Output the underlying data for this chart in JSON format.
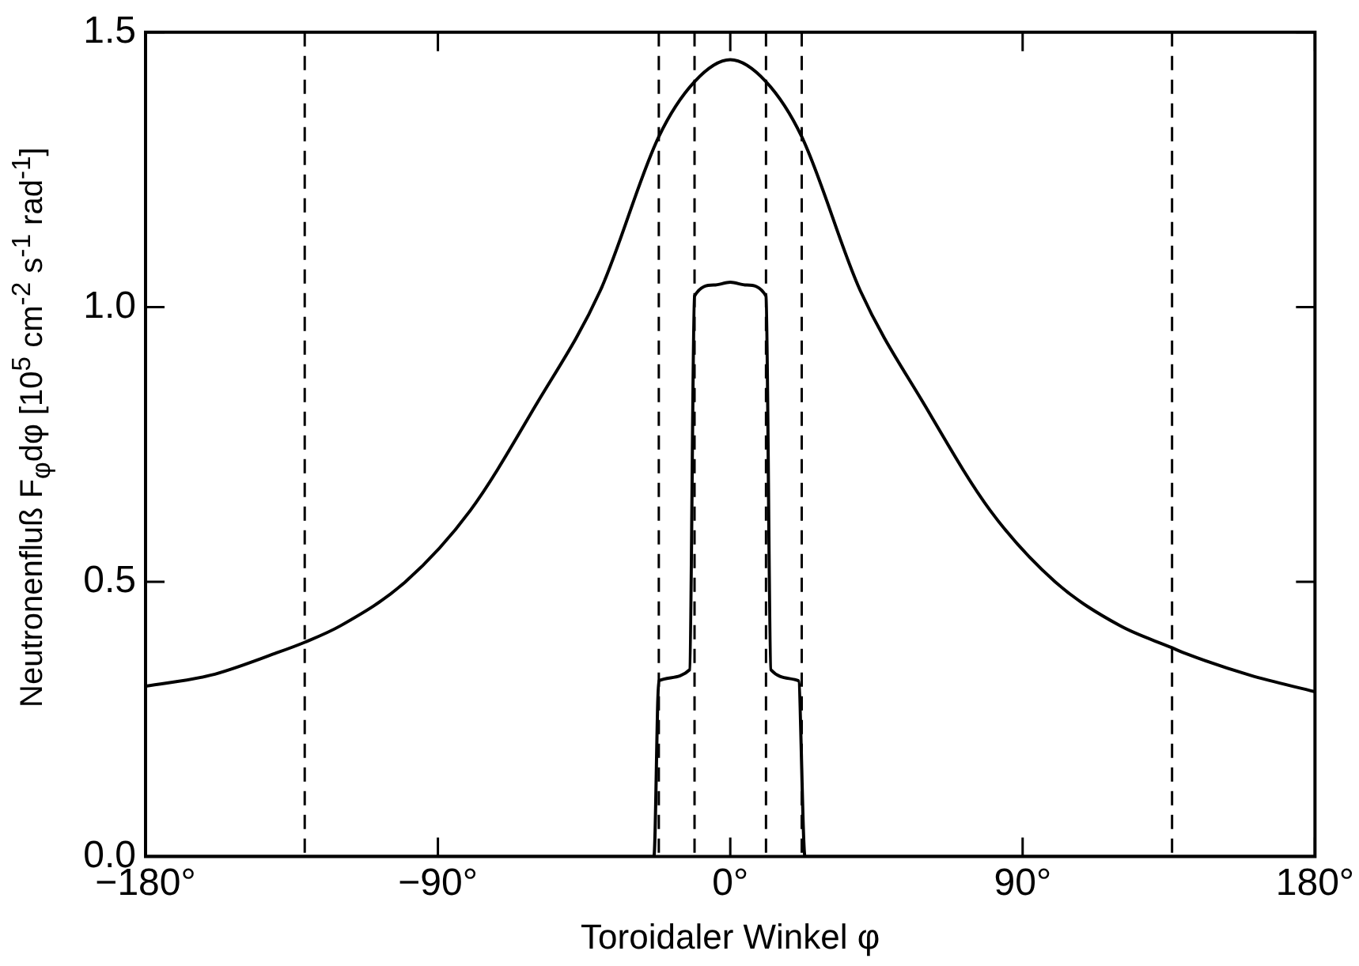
{
  "chart_data": {
    "type": "line",
    "xlabel": "Toroidaler Winkel φ",
    "ylabel": "Neutronenfluß F$_{φ}$dφ [10$^{5}$ cm$^{-2}$ s$^{-1}$ rad$^{-1}$]",
    "xlim": [
      -180,
      180
    ],
    "ylim": [
      0,
      1.5
    ],
    "xticks": [
      {
        "value": -180,
        "label": "−180°"
      },
      {
        "value": -90,
        "label": "−90°"
      },
      {
        "value": 0,
        "label": "0°"
      },
      {
        "value": 90,
        "label": "90°"
      },
      {
        "value": 180,
        "label": "180°"
      }
    ],
    "yticks": [
      {
        "value": 0,
        "label": "0.0"
      },
      {
        "value": 0.5,
        "label": "0.5"
      },
      {
        "value": 1,
        "label": "1.0"
      },
      {
        "value": 1.5,
        "label": "1.5"
      }
    ],
    "grid": false,
    "legend": false,
    "marker": "none",
    "line_style": "solid",
    "series": [
      {
        "color": "#000000",
        "x": [
          -180,
          -160,
          -140,
          -131,
          -120,
          -100,
          -80,
          -60,
          -40,
          -22,
          -11,
          0,
          11,
          22,
          40,
          60,
          80,
          100,
          120,
          136,
          140,
          160,
          180
        ],
        "values": [
          0.31,
          0.33,
          0.37,
          0.39,
          0.42,
          0.5,
          0.63,
          0.82,
          1.03,
          1.31,
          1.41,
          1.45,
          1.41,
          1.31,
          1.03,
          0.82,
          0.63,
          0.5,
          0.42,
          0.38,
          0.37,
          0.33,
          0.3
        ]
      },
      {
        "color": "#000000",
        "x": [
          -180,
          -23.5,
          -22,
          -12.5,
          -11,
          -5,
          0,
          5,
          11,
          12.5,
          21,
          23,
          180
        ],
        "values": [
          0,
          0,
          0.32,
          0.34,
          1.02,
          1.04,
          1.045,
          1.04,
          1.02,
          0.34,
          0.32,
          0,
          0
        ]
      }
    ],
    "ref_lines": [
      {
        "axis": "x",
        "value": -131,
        "color": "#000000",
        "line_style": "dashed"
      },
      {
        "axis": "x",
        "value": -22,
        "color": "#000000",
        "line_style": "dashed"
      },
      {
        "axis": "x",
        "value": -11,
        "color": "#000000",
        "line_style": "dashed"
      },
      {
        "axis": "x",
        "value": 11,
        "color": "#000000",
        "line_style": "dashed"
      },
      {
        "axis": "x",
        "value": 22,
        "color": "#000000",
        "line_style": "dashed"
      },
      {
        "axis": "x",
        "value": 136,
        "color": "#000000",
        "line_style": "dashed"
      }
    ]
  }
}
